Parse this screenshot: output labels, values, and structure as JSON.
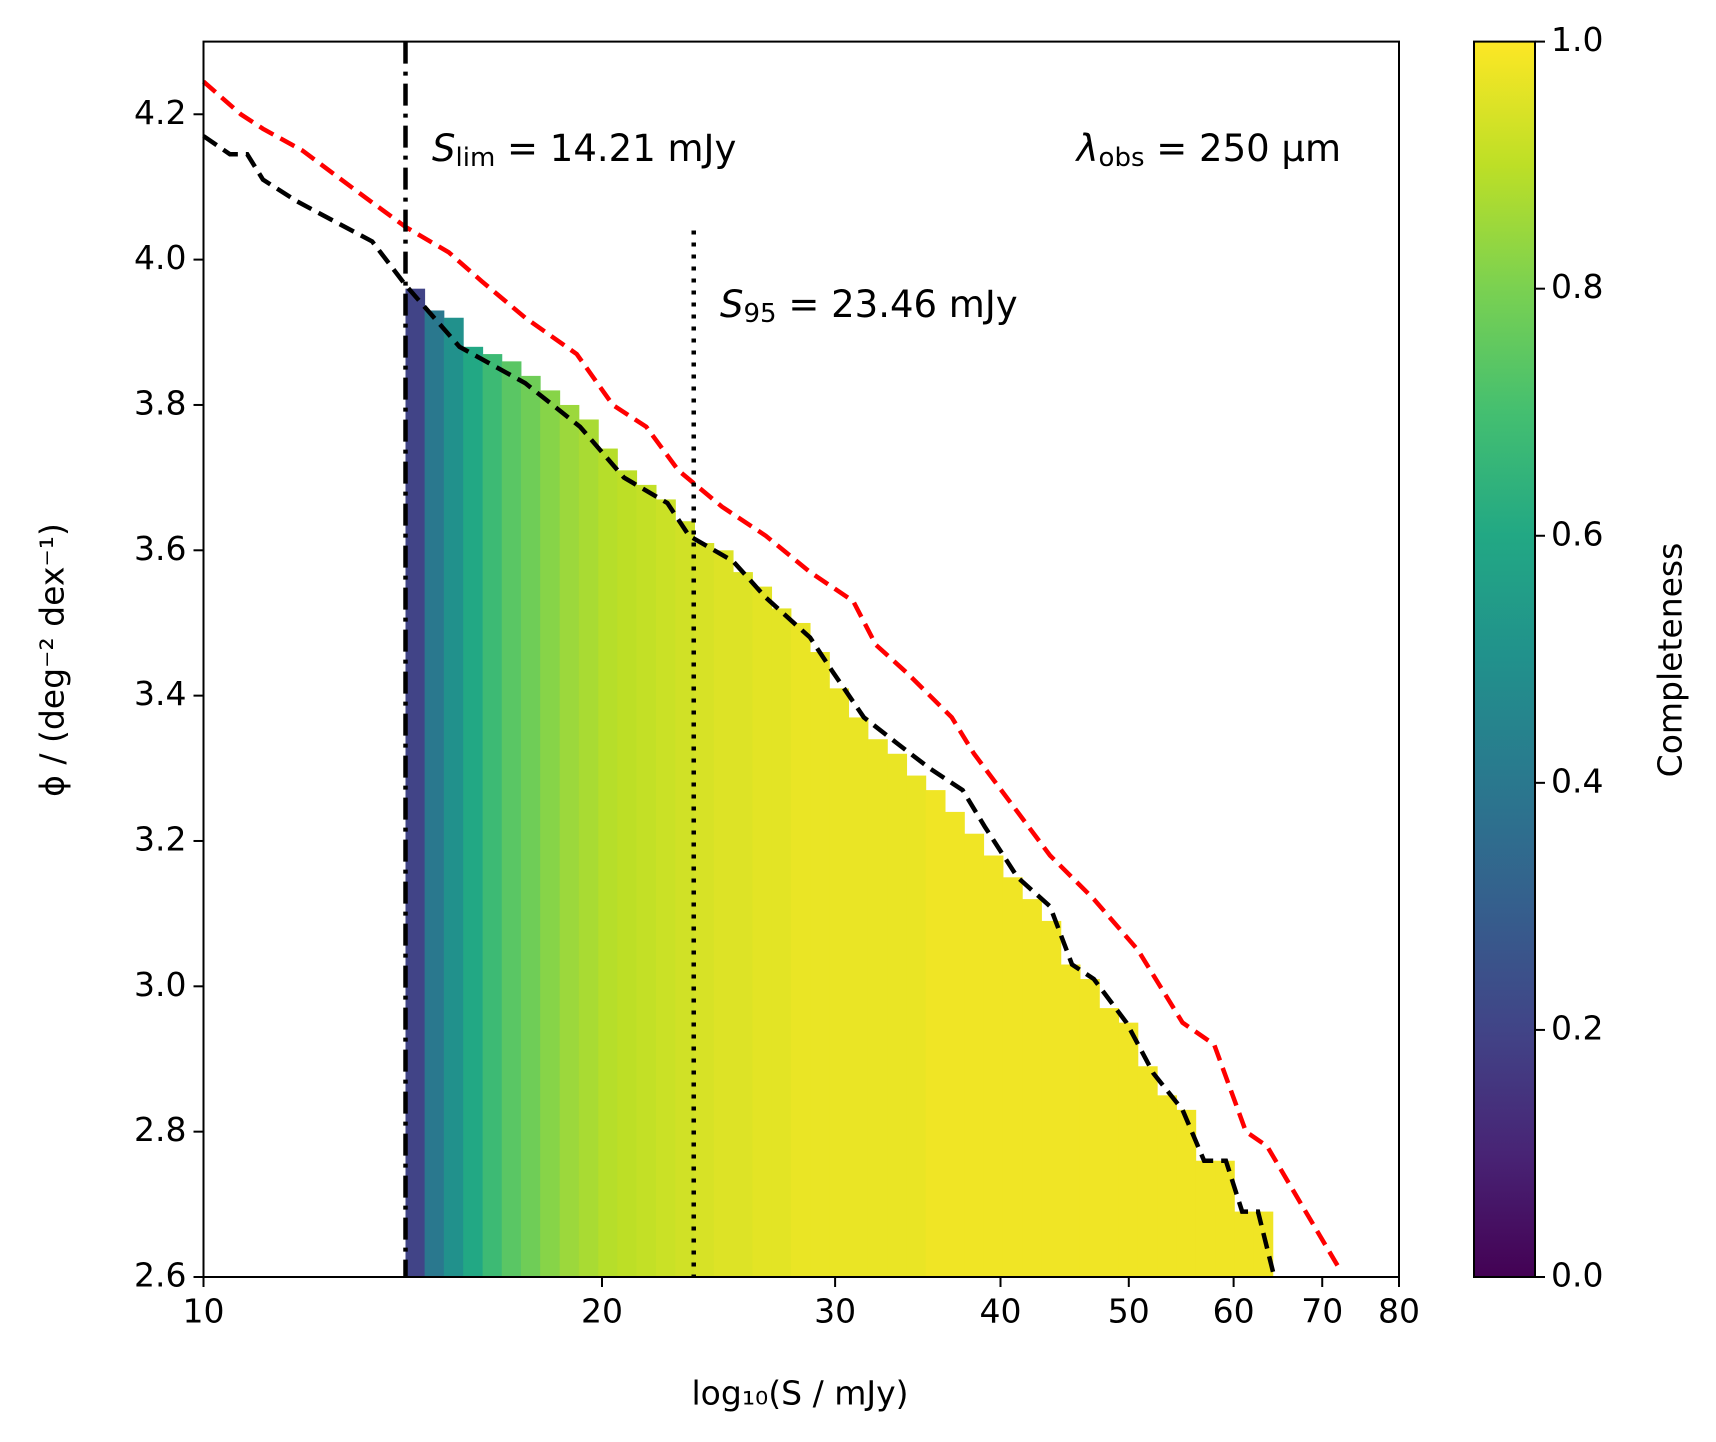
{
  "chart_data": {
    "type": "histogram",
    "xlabel": "log₁₀(S / mJy)",
    "ylabel": "ϕ / (deg⁻² dex⁻¹)",
    "xscale": "log",
    "xlim": [
      10,
      80
    ],
    "xticks": [
      10,
      20,
      30,
      40,
      50,
      60,
      70,
      80
    ],
    "ylim": [
      2.6,
      4.3
    ],
    "yticks": [
      {
        "value": 2.6,
        "label": "2.6"
      },
      {
        "value": 2.8,
        "label": "2.8"
      },
      {
        "value": 3.0,
        "label": "3.0"
      },
      {
        "value": 3.2,
        "label": "3.2"
      },
      {
        "value": 3.4,
        "label": "3.4"
      },
      {
        "value": 3.6,
        "label": "3.6"
      },
      {
        "value": 3.8,
        "label": "3.8"
      },
      {
        "value": 4.0,
        "label": "4.0"
      },
      {
        "value": 4.2,
        "label": "4.2"
      }
    ],
    "bins": [
      14.21,
      14.69,
      15.19,
      15.71,
      16.25,
      16.8,
      17.37,
      17.96,
      18.58,
      19.21,
      19.87,
      20.54,
      21.24,
      21.97,
      22.72,
      23.49,
      24.29,
      25.12,
      25.98,
      26.86,
      27.78,
      28.72,
      29.7,
      30.71,
      31.76,
      32.85,
      33.97,
      35.12,
      36.32,
      37.56,
      38.84,
      40.17,
      41.54,
      42.95,
      44.42,
      45.93,
      47.5,
      49.12,
      50.79,
      52.53,
      54.32,
      56.17,
      58.09,
      60.07,
      62.11,
      64.23
    ],
    "values": [
      3.96,
      3.93,
      3.92,
      3.88,
      3.87,
      3.86,
      3.84,
      3.82,
      3.8,
      3.78,
      3.74,
      3.71,
      3.69,
      3.67,
      3.64,
      3.61,
      3.6,
      3.57,
      3.55,
      3.52,
      3.5,
      3.46,
      3.41,
      3.37,
      3.34,
      3.32,
      3.29,
      3.27,
      3.24,
      3.21,
      3.18,
      3.15,
      3.12,
      3.09,
      3.03,
      3.01,
      2.97,
      2.95,
      2.89,
      2.85,
      2.83,
      2.76,
      2.76,
      2.69,
      2.69
    ],
    "completeness": [
      0.2,
      0.4,
      0.5,
      0.6,
      0.68,
      0.74,
      0.78,
      0.82,
      0.85,
      0.87,
      0.89,
      0.9,
      0.91,
      0.92,
      0.93,
      0.94,
      0.95,
      0.95,
      0.96,
      0.96,
      0.97,
      0.97,
      0.97,
      0.97,
      0.97,
      0.97,
      0.97,
      0.98,
      0.98,
      0.98,
      0.98,
      0.98,
      0.98,
      0.98,
      0.98,
      0.98,
      0.98,
      0.98,
      0.98,
      0.98,
      0.98,
      0.98,
      0.98,
      0.98,
      0.98
    ],
    "lines": [
      {
        "color": "#ff0000",
        "dash": "dashed",
        "x": [
          10,
          10.67,
          11.09,
          11.88,
          13.15,
          14.21,
          15.32,
          16.23,
          17.5,
          19.14,
          20.38,
          21.6,
          22.84,
          24.64,
          26.59,
          28.72,
          30.96,
          32.2,
          34.05,
          36.75,
          38.2,
          41.2,
          43.6,
          47.05,
          50.8,
          54.9,
          58.0,
          61.3,
          63.6,
          67.5,
          72.2
        ],
        "values": [
          4.245,
          4.2,
          4.18,
          4.15,
          4.09,
          4.045,
          4.01,
          3.97,
          3.92,
          3.87,
          3.8,
          3.77,
          3.71,
          3.66,
          3.62,
          3.57,
          3.53,
          3.47,
          3.43,
          3.37,
          3.32,
          3.24,
          3.18,
          3.12,
          3.05,
          2.95,
          2.92,
          2.8,
          2.78,
          2.7,
          2.61
        ]
      },
      {
        "color": "#000000",
        "dash": "dashed",
        "x": [
          10,
          10.47,
          10.79,
          11.09,
          11.77,
          13.41,
          14.21,
          15.61,
          17.5,
          19.25,
          20.78,
          22.41,
          23.27,
          25.12,
          26.59,
          28.72,
          29.82,
          31.54,
          33.38,
          35.36,
          37.45,
          38.91,
          41.2,
          43.6,
          45.3,
          47.05,
          49.8,
          52.2,
          54.9,
          57.0,
          59.2,
          60.9,
          62.6,
          64.4
        ],
        "values": [
          4.17,
          4.145,
          4.145,
          4.11,
          4.08,
          4.025,
          3.965,
          3.88,
          3.83,
          3.77,
          3.7,
          3.665,
          3.62,
          3.585,
          3.535,
          3.48,
          3.435,
          3.37,
          3.335,
          3.3,
          3.27,
          3.22,
          3.15,
          3.11,
          3.03,
          3.01,
          2.95,
          2.88,
          2.83,
          2.76,
          2.76,
          2.69,
          2.69,
          2.6
        ]
      }
    ],
    "vlines": [
      {
        "x": 14.21,
        "dash": "dashdot",
        "color": "#000000",
        "ytop": 4.3
      },
      {
        "x": 23.46,
        "dash": "dotted",
        "color": "#000000",
        "ytop": 4.04
      }
    ],
    "annotations": [
      {
        "symbol": "S",
        "subscript": "lim",
        "text": " = 14.21 mJy"
      },
      {
        "symbol": "S",
        "subscript": "95",
        "text": " = 23.46 mJy"
      },
      {
        "symbol": "λ",
        "subscript": "obs",
        "text": " = 250 μm"
      }
    ],
    "colorbar": {
      "label": "Completeness",
      "lim": [
        0,
        1
      ],
      "ticks": [
        {
          "value": 0,
          "label": "0.0"
        },
        {
          "value": 0.2,
          "label": "0.2"
        },
        {
          "value": 0.4,
          "label": "0.4"
        },
        {
          "value": 0.6,
          "label": "0.6"
        },
        {
          "value": 0.8,
          "label": "0.8"
        },
        {
          "value": 1,
          "label": "1.0"
        }
      ],
      "colors": [
        "#440154",
        "#482475",
        "#414487",
        "#355f8d",
        "#2a788e",
        "#21918c",
        "#22a884",
        "#44bf70",
        "#7ad151",
        "#bddf26",
        "#fde725"
      ]
    }
  }
}
